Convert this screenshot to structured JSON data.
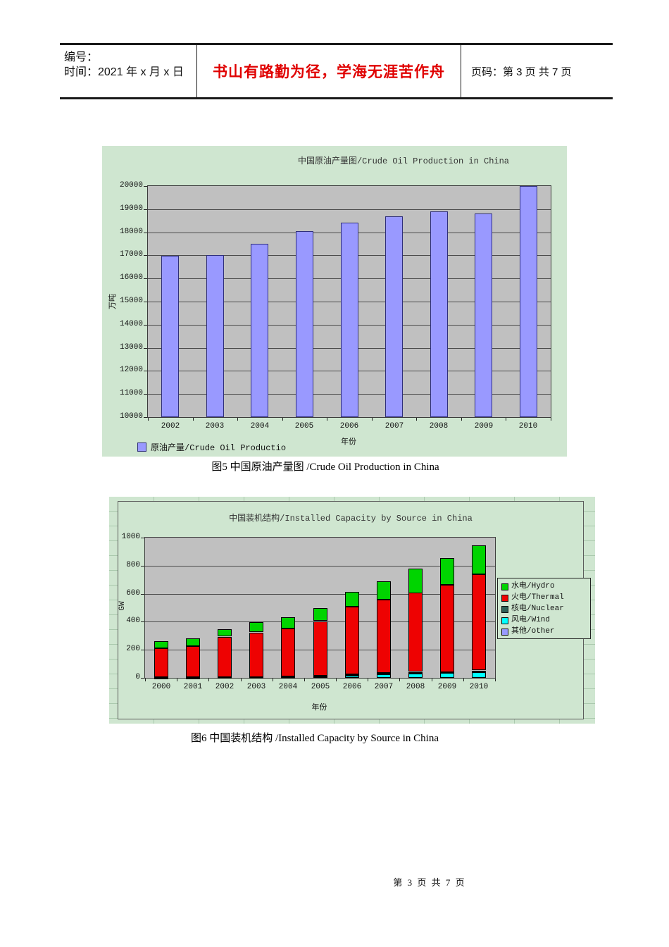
{
  "header": {
    "number_label": "编号：",
    "time_label": "时间：2021 年 x 月 x 日",
    "motto": "书山有路勤为径，学海无涯苦作舟",
    "page_label": "页码：第 3 页  共 7 页"
  },
  "figures": [
    {
      "caption": "图5 中国原油产量图 /Crude Oil Production in China"
    },
    {
      "caption": "图6 中国装机结构 /Installed Capacity by Source in China"
    }
  ],
  "footer": {
    "page_text": "第 3 页 共 7 页"
  },
  "chart_data": [
    {
      "type": "bar",
      "title": "中国原油产量图/Crude Oil Production in China",
      "xlabel": "年份",
      "ylabel": "万吨",
      "ylim": [
        10000,
        20000
      ],
      "ytick_step": 1000,
      "categories": [
        "2002",
        "2003",
        "2004",
        "2005",
        "2006",
        "2007",
        "2008",
        "2009",
        "2010"
      ],
      "values": [
        16970,
        17000,
        17500,
        18050,
        18400,
        18700,
        18900,
        18800,
        20000
      ],
      "series_name": "原油产量/Crude Oil Productio",
      "bar_color": "#9999ff",
      "bar_border": "#2e2e7a",
      "plot_bg": "#c0c0c0",
      "grid": "horizontal",
      "legend_position": "bottom-left"
    },
    {
      "type": "stacked_bar",
      "title": "中国装机结构/Installed Capacity by Source in China",
      "xlabel": "年份",
      "ylabel": "GW",
      "ylim": [
        0,
        1000
      ],
      "ytick_step": 200,
      "categories": [
        "2000",
        "2001",
        "2002",
        "2003",
        "2004",
        "2005",
        "2006",
        "2007",
        "2008",
        "2009",
        "2010"
      ],
      "series": [
        {
          "name": "水电/Hydro",
          "color": "#00d400",
          "values": [
            50,
            56,
            52,
            71,
            79,
            92,
            105,
            130,
            174,
            190,
            208
          ]
        },
        {
          "name": "火电/Thermal",
          "color": "#ee0202",
          "values": [
            208,
            220,
            285,
            315,
            340,
            385,
            484,
            525,
            565,
            621,
            685
          ]
        },
        {
          "name": "核电/Nuclear",
          "color": "#2e6058",
          "values": [
            2,
            2,
            5,
            6,
            7,
            8,
            9,
            9,
            9,
            9,
            12
          ]
        },
        {
          "name": "风电/Wind",
          "color": "#00ffff",
          "values": [
            1,
            2,
            3,
            3,
            4,
            10,
            17,
            26,
            32,
            35,
            40
          ]
        },
        {
          "name": "其他/other",
          "color": "#9999ff",
          "values": [
            0,
            0,
            0,
            0,
            0,
            0,
            0,
            0,
            0,
            0,
            0
          ]
        }
      ],
      "stack_order_bottom_to_top": [
        "其他/other",
        "风电/Wind",
        "核电/Nuclear",
        "火电/Thermal",
        "水电/Hydro"
      ],
      "plot_bg": "#c0c0c0",
      "grid": "horizontal",
      "legend_position": "right"
    }
  ]
}
